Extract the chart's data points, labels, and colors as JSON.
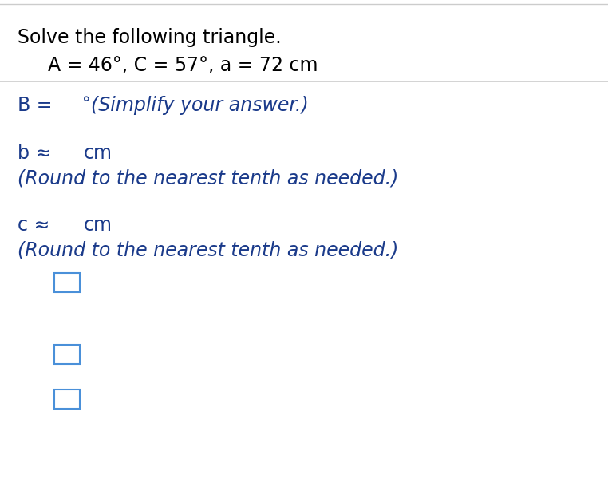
{
  "title_line1": "Solve the following triangle.",
  "title_line2": "A = 46°, C = 57°, a = 72 cm",
  "line1_prefix": "B = ",
  "line1_superscript": "°",
  "line1_suffix": " (Simplify your answer.)",
  "line2_prefix": "b ≈ ",
  "line2_suffix": " cm",
  "line2_note": "(Round to the nearest tenth as needed.)",
  "line3_prefix": "c ≈ ",
  "line3_suffix": " cm",
  "line3_note": "(Round to the nearest tenth as needed.)",
  "bg_color": "#ffffff",
  "text_color_black": "#000000",
  "text_color_blue": "#1a3a8a",
  "box_edge_color": "#4a90d9",
  "separator_color": "#cccccc",
  "title_fontsize": 17,
  "equation_fontsize": 17,
  "answer_fontsize": 17,
  "note_fontsize": 17
}
